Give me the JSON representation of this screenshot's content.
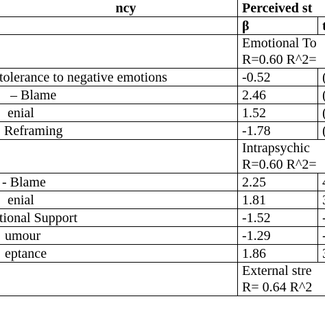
{
  "header": {
    "left_label": "ncy",
    "right_label": "Perceived st",
    "beta_label": "β",
    "t_label": "t"
  },
  "sections": [
    {
      "title": "Emotional To",
      "stats": "R=0.60 R^2=",
      "rows": [
        {
          "label": "tolerance to negative emotions",
          "beta": "-0.52",
          "t": "("
        },
        {
          "label": "– Blame",
          "beta": "2.46",
          "t": "("
        },
        {
          "label": "enial",
          "beta": "1.52",
          "t": "("
        },
        {
          "label": "Reframing",
          "beta": "-1.78",
          "t": "("
        }
      ]
    },
    {
      "title": "Intrapsychic",
      "stats": "R=0.60 R^2=",
      "rows": [
        {
          "label": "- Blame",
          "beta": "2.25",
          "t": "4"
        },
        {
          "label": "enial",
          "beta": "1.81",
          "t": "3"
        },
        {
          "label": "tional Support",
          "beta": "-1.52",
          "t": "-"
        },
        {
          "label": "umour",
          "beta": "-1.29",
          "t": "-"
        },
        {
          "label": "eptance",
          "beta": "1.86",
          "t": "3"
        }
      ]
    },
    {
      "title": "External stre",
      "stats": "R= 0.64 R^2"
    }
  ]
}
